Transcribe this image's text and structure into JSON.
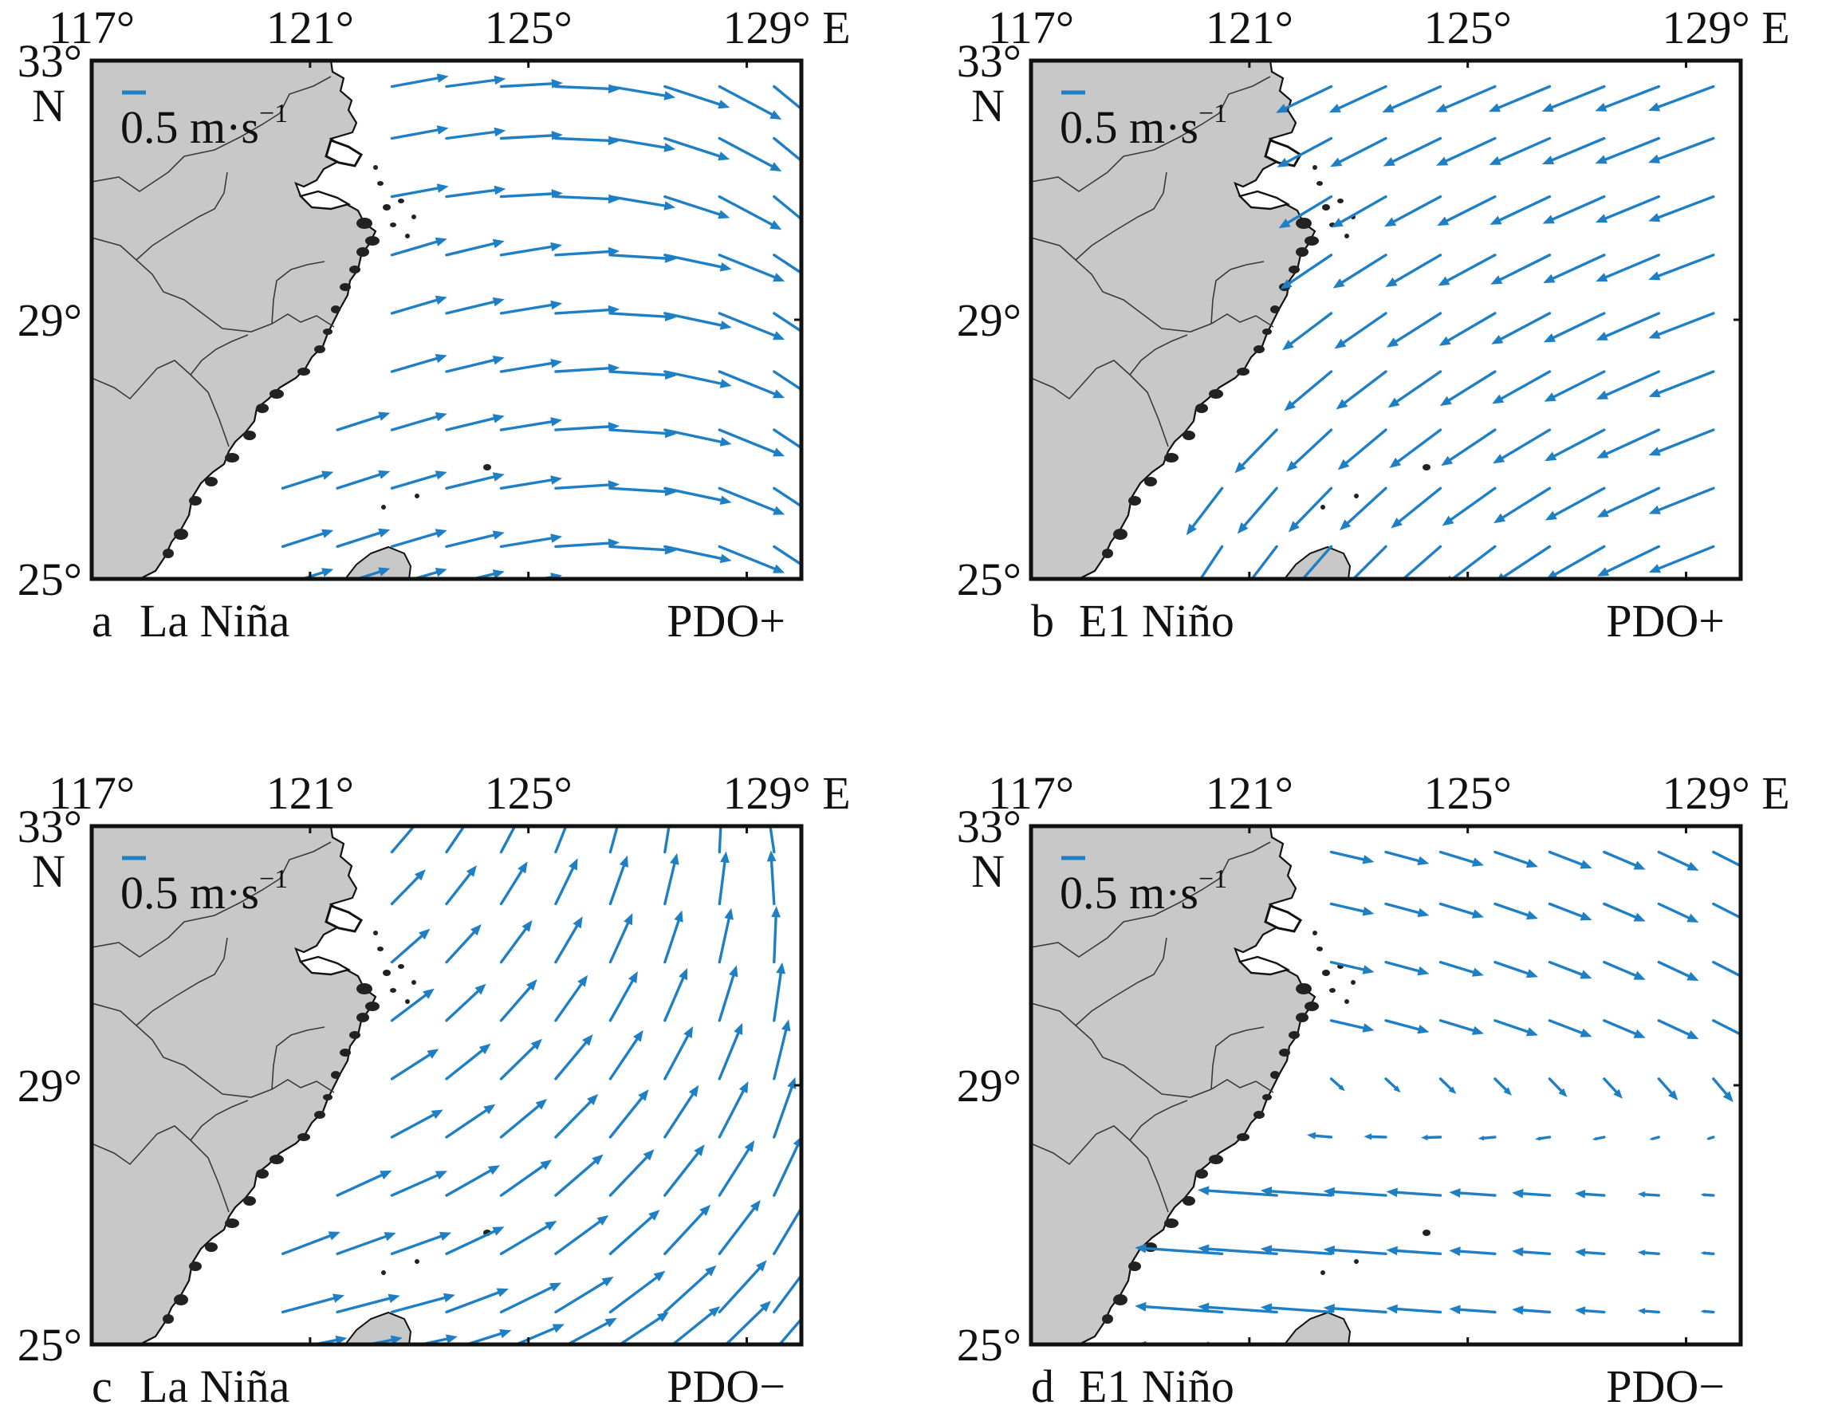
{
  "figure": {
    "colors": {
      "arrow": "#1f7fc4",
      "land": "#c8c8c8",
      "coast": "#111111",
      "border": "#3a3a3a",
      "frame": "#111111",
      "sea": "#ffffff"
    },
    "axes": {
      "lon_ticks": [
        117,
        121,
        125,
        129
      ],
      "lat_ticks": [
        25,
        29,
        33
      ],
      "lon_labels": [
        "117°",
        "121°",
        "125°",
        "129° E"
      ],
      "lat_labels": [
        "25°",
        "29°",
        "33°"
      ],
      "lat_unit": "N"
    },
    "scale": {
      "value": "0.5",
      "unit": "m·s",
      "exponent": "−1"
    },
    "panels": [
      {
        "letter": "a",
        "event": "La Niña",
        "pdo": "PDO+",
        "field": "nina_pos"
      },
      {
        "letter": "b",
        "event": "E1 Niño",
        "pdo": "PDO+",
        "field": "nino_pos"
      },
      {
        "letter": "c",
        "event": "La Niña",
        "pdo": "PDO−",
        "field": "nina_neg"
      },
      {
        "letter": "d",
        "event": "E1 Niño",
        "pdo": "PDO−",
        "field": "nino_neg"
      }
    ]
  }
}
